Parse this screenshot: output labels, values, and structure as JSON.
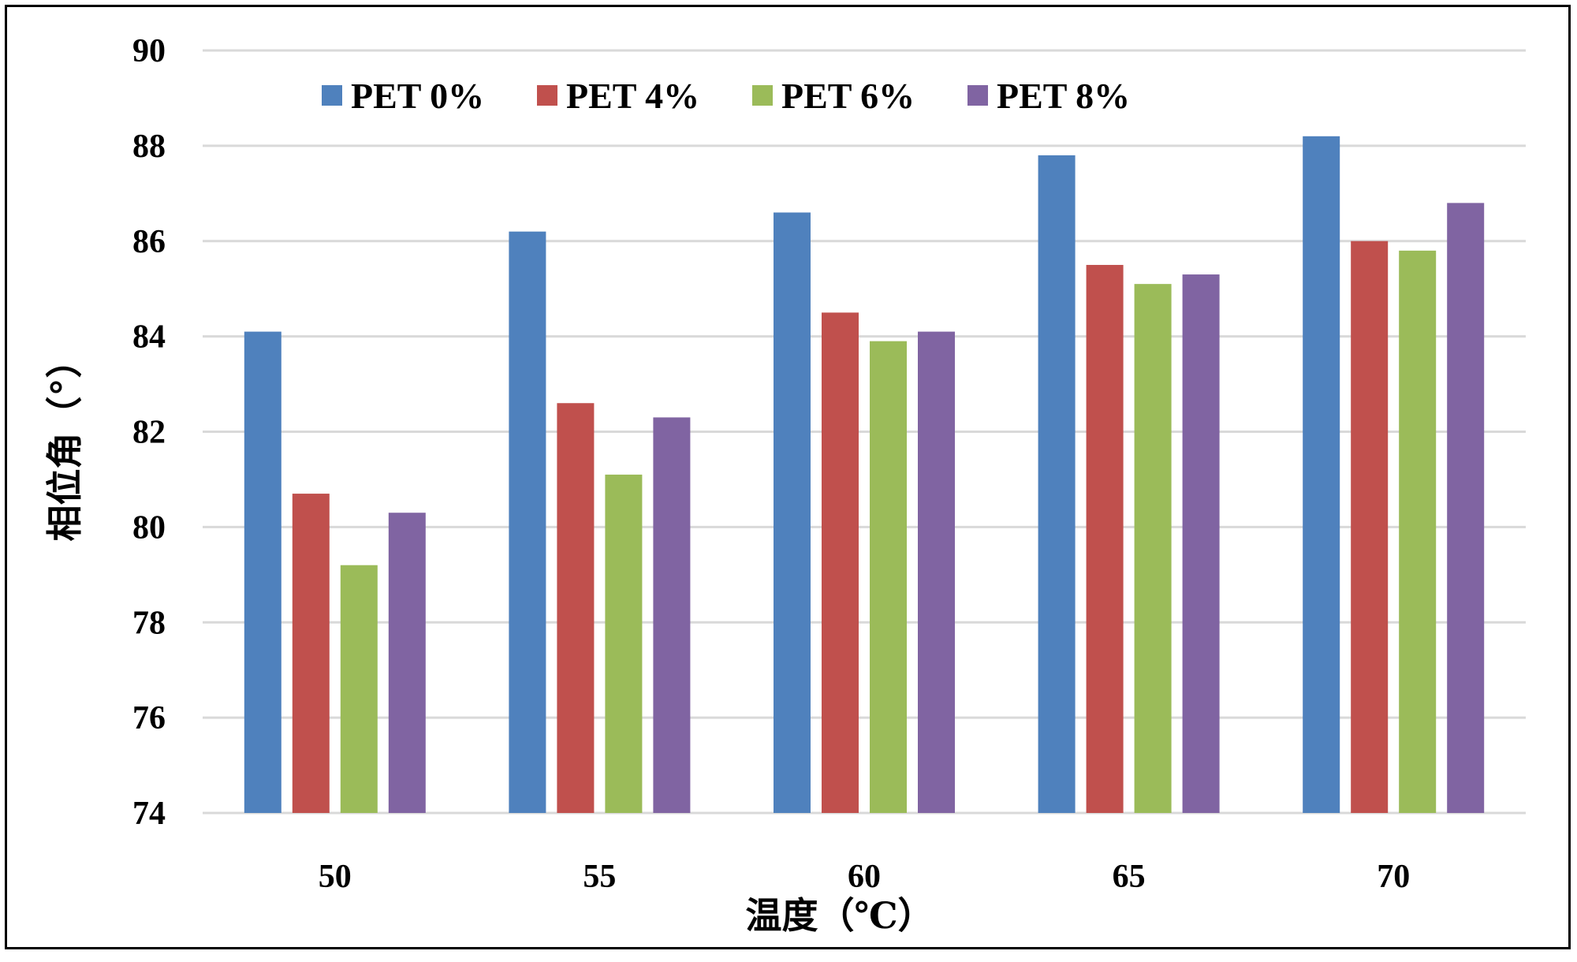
{
  "chart_data": {
    "type": "bar",
    "title": "",
    "xlabel": "温度（℃）",
    "ylabel": "相位角（°）",
    "categories": [
      "50",
      "55",
      "60",
      "65",
      "70"
    ],
    "ylim": [
      74,
      90
    ],
    "yticks": [
      "74",
      "76",
      "78",
      "80",
      "82",
      "84",
      "86",
      "88",
      "90"
    ],
    "grid": true,
    "legend_position": "top",
    "series": [
      {
        "name": "PET 0%",
        "color": "#4F81BD",
        "values": [
          84.1,
          86.2,
          86.6,
          87.8,
          88.2
        ]
      },
      {
        "name": "PET 4%",
        "color": "#C0504D",
        "values": [
          80.7,
          82.6,
          84.5,
          85.5,
          86.0
        ]
      },
      {
        "name": "PET 6%",
        "color": "#9BBB59",
        "values": [
          79.2,
          81.1,
          83.9,
          85.1,
          85.8
        ]
      },
      {
        "name": "PET 8%",
        "color": "#8064A2",
        "values": [
          80.3,
          82.3,
          84.1,
          85.3,
          86.8
        ]
      }
    ]
  }
}
